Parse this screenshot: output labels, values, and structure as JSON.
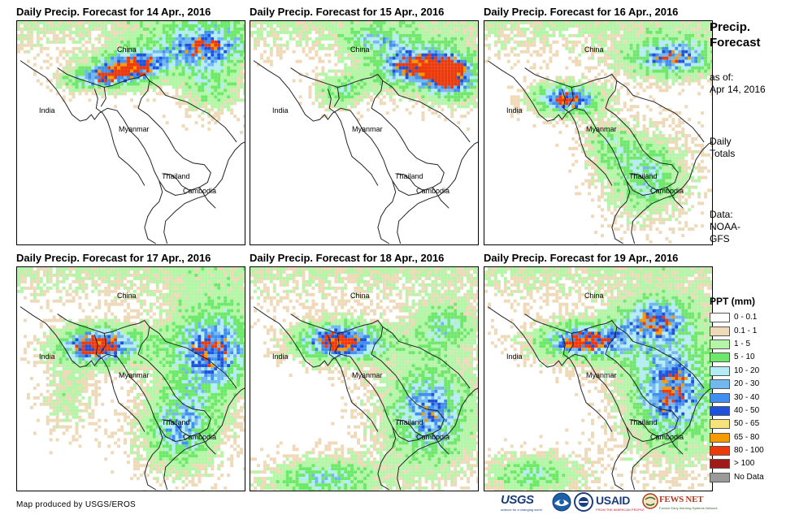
{
  "panels": [
    {
      "title": "Daily Precip. Forecast for 14 Apr., 2016",
      "date": "2016-04-14"
    },
    {
      "title": "Daily Precip. Forecast for 15 Apr., 2016",
      "date": "2016-04-15"
    },
    {
      "title": "Daily Precip. Forecast for 16 Apr., 2016",
      "date": "2016-04-16"
    },
    {
      "title": "Daily Precip. Forecast for 17 Apr., 2016",
      "date": "2016-04-17"
    },
    {
      "title": "Daily Precip. Forecast for 18 Apr., 2016",
      "date": "2016-04-18"
    },
    {
      "title": "Daily Precip. Forecast for 19 Apr., 2016",
      "date": "2016-04-19"
    }
  ],
  "map_labels": {
    "china": "China",
    "india": "India",
    "myanmar": "Myanmar",
    "thailand": "Thailand",
    "cambodia": "Cambodia"
  },
  "sidebar": {
    "title_line1": "Precip.",
    "title_line2": "Forecast",
    "asof_line1": "as of:",
    "asof_line2": "Apr 14, 2016",
    "totals_line1": "Daily",
    "totals_line2": "Totals",
    "data_line1": "Data:",
    "data_line2": "NOAA-",
    "data_line3": "GFS"
  },
  "legend": {
    "title": "PPT (mm)",
    "items": [
      {
        "label": "0 - 0.1",
        "color": "#ffffff"
      },
      {
        "label": "0.1 - 1",
        "color": "#eed9b8"
      },
      {
        "label": "1 - 5",
        "color": "#b4f5a8"
      },
      {
        "label": "5 - 10",
        "color": "#6ee86a"
      },
      {
        "label": "10 - 20",
        "color": "#b4ecf6"
      },
      {
        "label": "20 - 30",
        "color": "#72b8ee"
      },
      {
        "label": "30 - 40",
        "color": "#3f8ef0"
      },
      {
        "label": "40 - 50",
        "color": "#1e52dc"
      },
      {
        "label": "50 - 65",
        "color": "#f6e27a"
      },
      {
        "label": "65 - 80",
        "color": "#f59a00"
      },
      {
        "label": "80 - 100",
        "color": "#ee3a0a"
      },
      {
        "label": "> 100",
        "color": "#a01a1a"
      },
      {
        "label": "No Data",
        "color": "#9a9a9a"
      }
    ]
  },
  "credit": "Map produced by USGS/EROS",
  "logos": {
    "usgs": "USGS",
    "usgs_tagline": "science for a changing world",
    "usaid": "USAID",
    "usaid_tagline": "FROM THE AMERICAN PEOPLE",
    "fews": "FEWS NET",
    "fews_tagline": "Famine Early Warning Systems Network"
  }
}
